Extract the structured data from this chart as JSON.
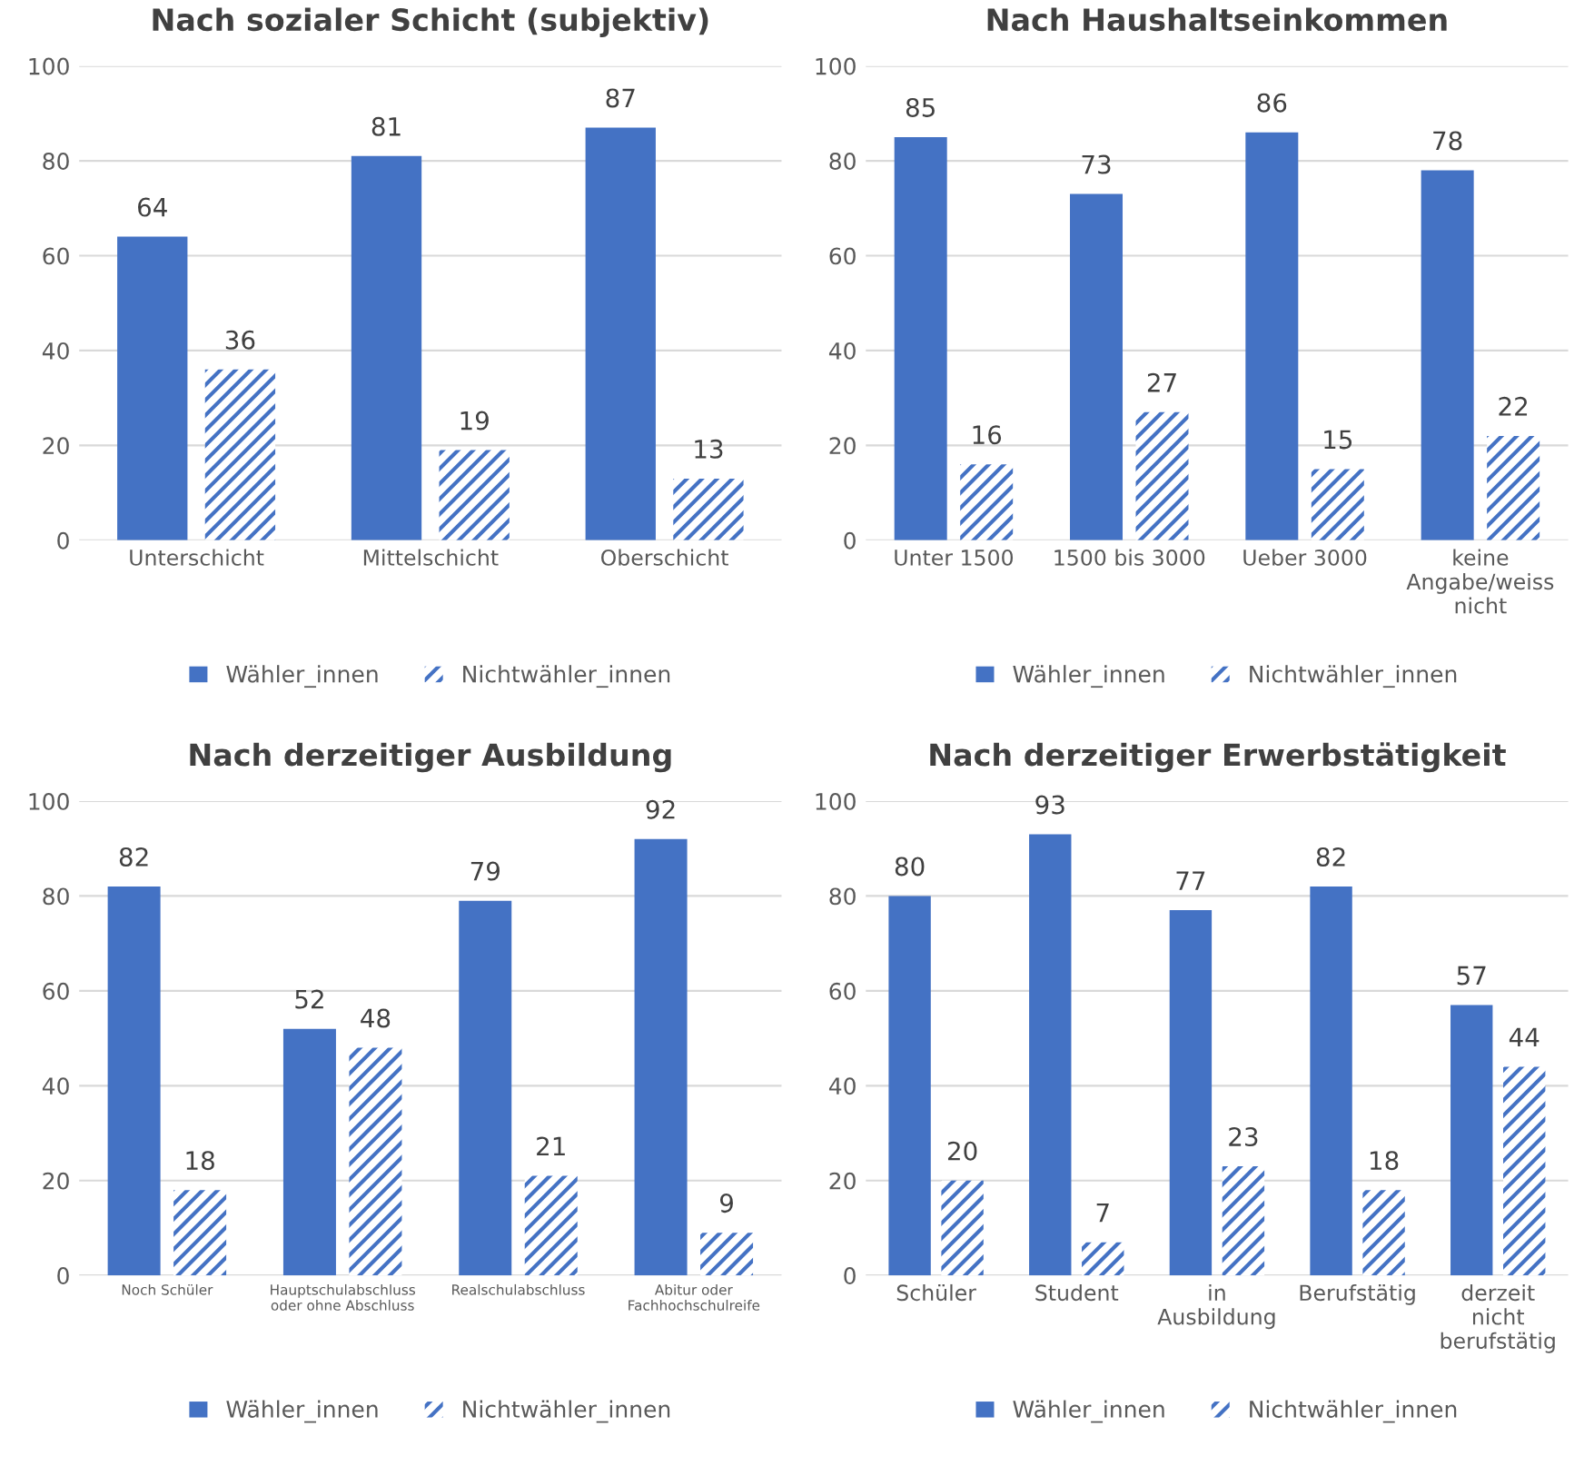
{
  "chart_data": [
    {
      "type": "bar",
      "title": "Nach sozialer Schicht (subjektiv)",
      "categories": [
        "Unterschicht",
        "Mittelschicht",
        "Oberschicht"
      ],
      "series": [
        {
          "name": "Wähler_innen",
          "color": "#4472c4",
          "values": [
            64,
            81,
            87
          ]
        },
        {
          "name": "Nichtwähler_innen",
          "color": "#4472c4",
          "values": [
            36,
            19,
            13
          ]
        }
      ],
      "ylim": [
        0,
        100
      ],
      "yticks": [
        0,
        20,
        40,
        60,
        80,
        100
      ],
      "grid": "y",
      "data_labels": true,
      "legend": "bottom"
    },
    {
      "type": "bar",
      "title": "Nach Haushaltseinkommen",
      "categories": [
        "Unter 1500",
        "1500 bis 3000",
        "Ueber 3000",
        "keine\nAngabe/weiss\nnicht"
      ],
      "series": [
        {
          "name": "Wähler_innen",
          "color": "#4472c4",
          "values": [
            85,
            73,
            86,
            78
          ]
        },
        {
          "name": "Nichtwähler_innen",
          "color": "#4472c4",
          "values": [
            16,
            27,
            15,
            22
          ]
        }
      ],
      "ylim": [
        0,
        100
      ],
      "yticks": [
        0,
        20,
        40,
        60,
        80,
        100
      ],
      "grid": "y",
      "data_labels": true,
      "legend": "bottom"
    },
    {
      "type": "bar",
      "title": "Nach derzeitiger Ausbildung",
      "categories": [
        "Noch Schüler",
        "Hauptschulabschluss\noder ohne Abschluss",
        "Realschulabschluss",
        "Abitur oder\nFachhochschulreife"
      ],
      "series": [
        {
          "name": "Wähler_innen",
          "color": "#4472c4",
          "values": [
            82,
            52,
            79,
            92
          ]
        },
        {
          "name": "Nichtwähler_innen",
          "color": "#4472c4",
          "values": [
            18,
            48,
            21,
            9
          ]
        }
      ],
      "ylim": [
        0,
        100
      ],
      "yticks": [
        0,
        20,
        40,
        60,
        80,
        100
      ],
      "grid": "y",
      "data_labels": true,
      "legend": "bottom"
    },
    {
      "type": "bar",
      "title": "Nach derzeitiger Erwerbstätigkeit",
      "categories": [
        "Schüler",
        "Student",
        "in\nAusbildung",
        "Berufstätig",
        "derzeit\nnicht\nberufstätig"
      ],
      "series": [
        {
          "name": "Wähler_innen",
          "color": "#4472c4",
          "values": [
            80,
            93,
            77,
            82,
            57
          ]
        },
        {
          "name": "Nichtwähler_innen",
          "color": "#4472c4",
          "values": [
            20,
            7,
            23,
            18,
            44
          ]
        }
      ],
      "ylim": [
        0,
        100
      ],
      "yticks": [
        0,
        20,
        40,
        60,
        80,
        100
      ],
      "grid": "y",
      "data_labels": true,
      "legend": "bottom"
    }
  ]
}
